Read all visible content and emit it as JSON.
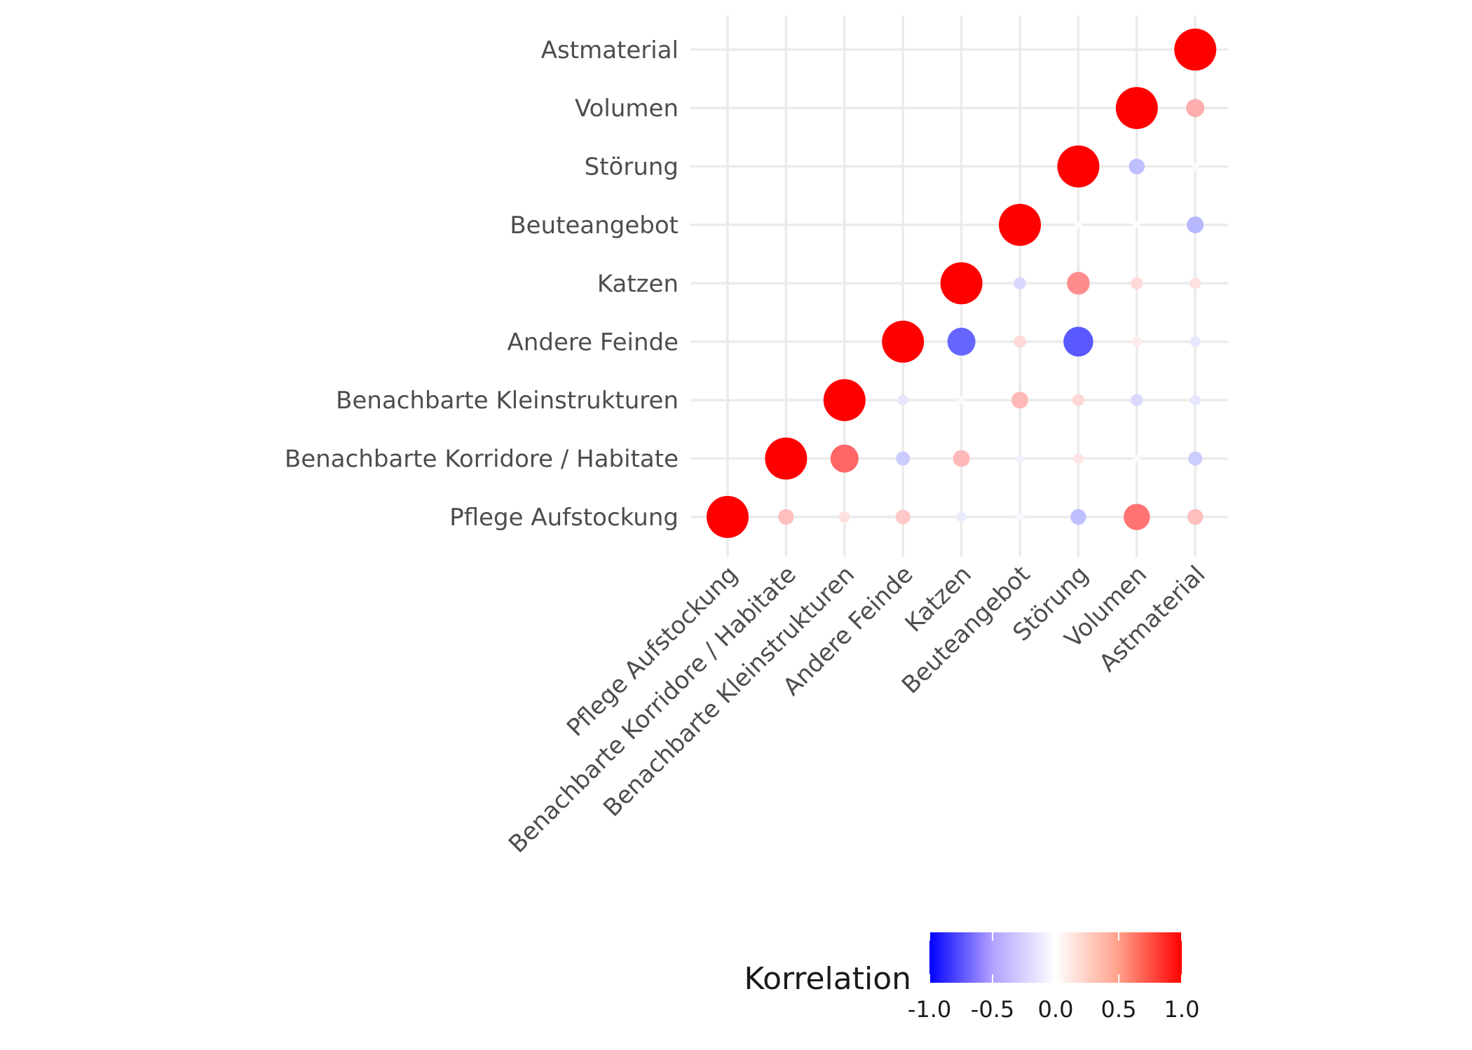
{
  "chart_data": {
    "type": "correlation-dotplot",
    "variables": [
      "Pflege Aufstockung",
      "Benachbarte Korridore / Habitate",
      "Benachbarte Kleinstrukturen",
      "Andere Feinde",
      "Katzen",
      "Beuteangebot",
      "Störung",
      "Volumen",
      "Astmaterial"
    ],
    "matrix_upper_by_column": [
      [
        1.0
      ],
      [
        0.25,
        1.0
      ],
      [
        0.12,
        0.6,
        1.0
      ],
      [
        0.22,
        -0.2,
        -0.1,
        1.0
      ],
      [
        -0.08,
        0.28,
        0.03,
        -0.6,
        1.0
      ],
      [
        -0.03,
        -0.05,
        0.28,
        0.15,
        -0.15,
        1.0
      ],
      [
        -0.25,
        0.1,
        0.15,
        -0.65,
        0.45,
        0.02,
        1.0
      ],
      [
        0.55,
        -0.02,
        -0.15,
        0.08,
        0.15,
        0.01,
        -0.25,
        1.0
      ],
      [
        0.25,
        -0.2,
        -0.1,
        -0.1,
        0.12,
        -0.28,
        0.02,
        0.32,
        1.0
      ]
    ],
    "color_scale": {
      "low": "#0000ff",
      "mid": "#ffffff",
      "high": "#ff0000",
      "limits": [
        -1.0,
        1.0
      ]
    },
    "legend": {
      "title": "Korrelation",
      "ticks": [
        "-1.0",
        "-0.5",
        "0.0",
        "0.5",
        "1.0"
      ],
      "placement": "bottom"
    },
    "grid": true
  }
}
